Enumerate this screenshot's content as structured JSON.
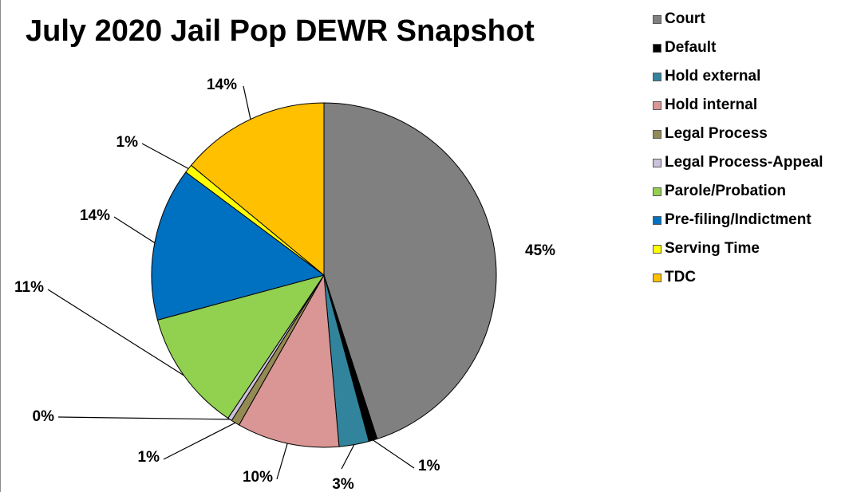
{
  "chart_data": {
    "type": "pie",
    "title": "July 2020 Jail Pop DEWR Snapshot",
    "slices": [
      {
        "name": "Court",
        "value": 45.0,
        "label": "45%",
        "color": "#808080"
      },
      {
        "name": "Default",
        "value": 0.8,
        "label": "1%",
        "color": "#000000"
      },
      {
        "name": "Hold external",
        "value": 2.8,
        "label": "3%",
        "color": "#31849b"
      },
      {
        "name": "Hold internal",
        "value": 9.6,
        "label": "10%",
        "color": "#d99694"
      },
      {
        "name": "Legal Process",
        "value": 0.8,
        "label": "1%",
        "color": "#948a54"
      },
      {
        "name": "Legal Process-Appeal",
        "value": 0.4,
        "label": "0%",
        "color": "#ccc0da"
      },
      {
        "name": "Parole/Probation",
        "value": 11.4,
        "label": "11%",
        "color": "#92d050"
      },
      {
        "name": "Pre-filing/Indictment",
        "value": 14.4,
        "label": "14%",
        "color": "#0070c0"
      },
      {
        "name": "Serving Time",
        "value": 0.8,
        "label": "1%",
        "color": "#ffff00"
      },
      {
        "name": "TDC",
        "value": 14.0,
        "label": "14%",
        "color": "#ffc000"
      }
    ],
    "legend_position": "right",
    "label_color": "#000000"
  }
}
